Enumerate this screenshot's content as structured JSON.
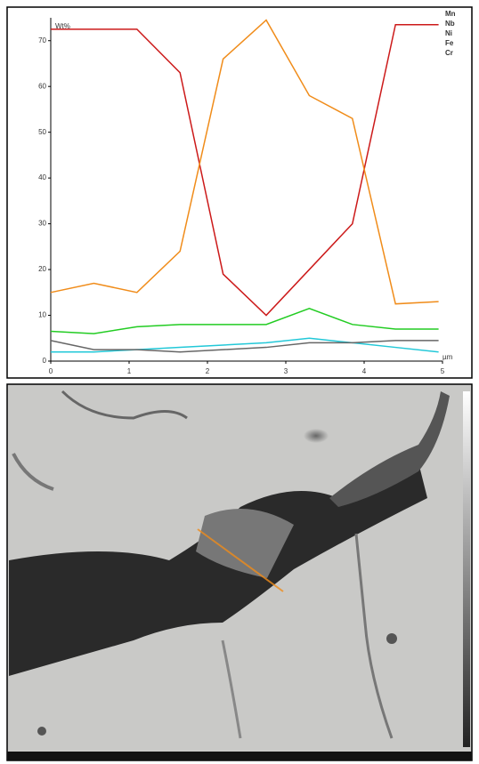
{
  "chart_data": {
    "type": "line",
    "y_label": "Wt%",
    "x_label": "µm",
    "x": [
      0,
      0.55,
      1.1,
      1.65,
      2.2,
      2.75,
      3.3,
      3.85,
      4.4,
      4.95
    ],
    "xlim": [
      0,
      5
    ],
    "xticks": [
      0,
      1,
      2,
      3,
      4,
      5
    ],
    "ylim": [
      0,
      75
    ],
    "yticks": [
      0,
      10,
      20,
      30,
      40,
      50,
      60,
      70
    ],
    "series": [
      {
        "name": "Mn",
        "color": "#22c8d8",
        "values": [
          2,
          2,
          2.5,
          3,
          3.5,
          4,
          5,
          4,
          3,
          2
        ]
      },
      {
        "name": "Nb",
        "color": "#666666",
        "values": [
          4.5,
          2.5,
          2.5,
          2,
          2.5,
          3,
          4,
          4,
          4.5,
          4.5
        ]
      },
      {
        "name": "Ni",
        "color": "#22cc22",
        "values": [
          6.5,
          6,
          7.5,
          8,
          8,
          8,
          11.5,
          8,
          7,
          7
        ]
      },
      {
        "name": "Fe",
        "color": "#cc1a1a",
        "values": [
          72.5,
          72.5,
          72.5,
          63,
          19,
          10,
          20,
          30,
          73.5,
          73.5
        ]
      },
      {
        "name": "Cr",
        "color": "#f08c1a",
        "values": [
          15,
          17,
          15,
          24,
          66,
          74.5,
          58,
          53,
          12.5,
          13
        ]
      }
    ]
  }
}
